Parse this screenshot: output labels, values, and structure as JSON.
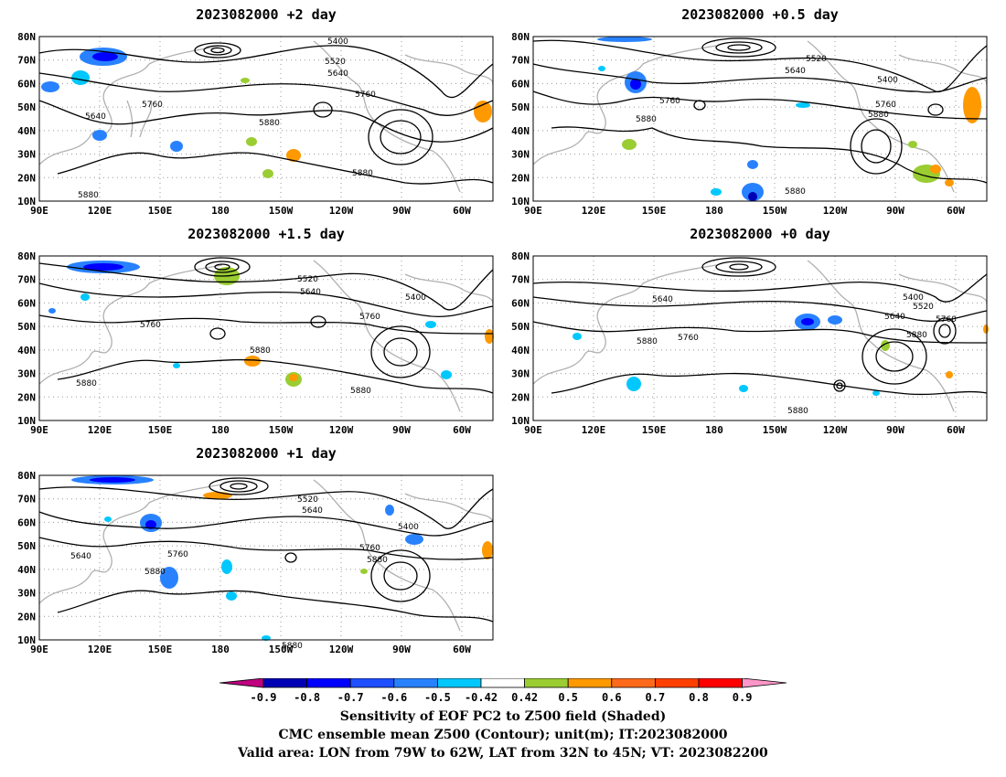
{
  "panels": [
    {
      "title": "2023082000  +2  day"
    },
    {
      "title": "2023082000  +0.5  day"
    },
    {
      "title": "2023082000  +1.5  day"
    },
    {
      "title": "2023082000  +0  day"
    },
    {
      "title": "2023082000  +1  day"
    }
  ],
  "axes": {
    "lon_ticks": [
      "90E",
      "120E",
      "150E",
      "180",
      "150W",
      "120W",
      "90W",
      "60W"
    ],
    "lat_ticks": [
      "80N",
      "70N",
      "60N",
      "50N",
      "40N",
      "30N",
      "20N",
      "10N"
    ]
  },
  "contour_labels": [
    "5400",
    "5520",
    "5640",
    "5760",
    "5880"
  ],
  "colorbar": {
    "ticks": [
      "-0.9",
      "-0.8",
      "-0.7",
      "-0.6",
      "-0.5",
      "-0.42",
      "0.42",
      "0.5",
      "0.6",
      "0.7",
      "0.8",
      "0.9"
    ],
    "colors": [
      "#0000b4",
      "#0000ff",
      "#1e50ff",
      "#2882ff",
      "#00c8ff",
      "#ffffff",
      "#9acd32",
      "#ff9900",
      "#ff6a1a",
      "#ff4000",
      "#ff0000"
    ],
    "under_color": "#c00080",
    "over_color": "#ff96c8"
  },
  "caption": {
    "line1": "Sensitivity of EOF PC2 to Z500 field (Shaded)",
    "line2": "CMC ensemble mean Z500 (Contour); unit(m); IT:2023082000",
    "line3": "Valid area: LON from 79W to 62W, LAT from 32N to 45N; VT: 2023082200"
  }
}
